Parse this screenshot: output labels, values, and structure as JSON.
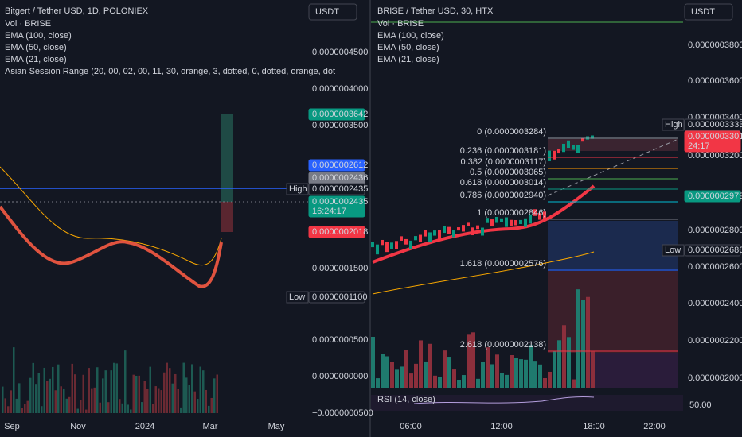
{
  "left": {
    "title": "Bitgert / Tether USD, 1D, POLONIEX",
    "indicators": [
      "Vol · BRISE",
      "EMA (100, close)",
      "EMA (50, close)",
      "EMA (21, close)",
      "Asian Session Range (20, 00, 02, 00, 11, 30, orange, 3, dotted, 0, dotted, orange, dot"
    ],
    "currency": "USDT",
    "price_axis": [
      "0.0000004500",
      "0.0000004000",
      "0.0000003500",
      "0.0000001500",
      "0.0000000500",
      "0.0000000000",
      "−0.0000000500"
    ],
    "tags": [
      {
        "value": "0.0000003642"
      },
      {
        "value": "0.0000002612"
      },
      {
        "value": "0.0000002436"
      },
      {
        "label": "High",
        "value": "0.0000002435"
      },
      {
        "value": "0.0000002435",
        "sub": "16:24:17"
      },
      {
        "value": "0.0000002018"
      },
      {
        "label": "Low",
        "value": "0.0000001100"
      }
    ],
    "time_axis": [
      "Sep",
      "Nov",
      "2024",
      "Mar",
      "May"
    ]
  },
  "right": {
    "title": "BRISE / Tether USD, 30, HTX",
    "indicators": [
      "Vol · BRISE",
      "EMA (100, close)",
      "EMA (50, close)",
      "EMA (21, close)"
    ],
    "currency": "USDT",
    "price_axis": [
      "0.0000003800",
      "0.0000003600",
      "0.0000003400",
      "0.0000003200",
      "0.0000002800",
      "0.0000002600",
      "0.0000002400",
      "0.0000002200",
      "0.0000002000"
    ],
    "tags": [
      {
        "label": "High",
        "value": "0.0000003333"
      },
      {
        "value": "0.0000003301",
        "sub": "24:17"
      },
      {
        "value": "0.0000002979"
      },
      {
        "label": "Low",
        "value": "0.0000002686"
      }
    ],
    "fib": [
      "0 (0.0000003284)",
      "0.236 (0.0000003181)",
      "0.382 (0.0000003117)",
      "0.5 (0.0000003065)",
      "0.618 (0.0000003014)",
      "0.786 (0.0000002940)",
      "1 (0.0000002846)",
      "1.618 (0.0000002576)",
      "2.618 (0.0000002138)"
    ],
    "rsi": {
      "title": "RSI (14, close)",
      "level": "50.00"
    },
    "time_axis": [
      "06:00",
      "12:00",
      "18:00",
      "22:00"
    ]
  }
}
